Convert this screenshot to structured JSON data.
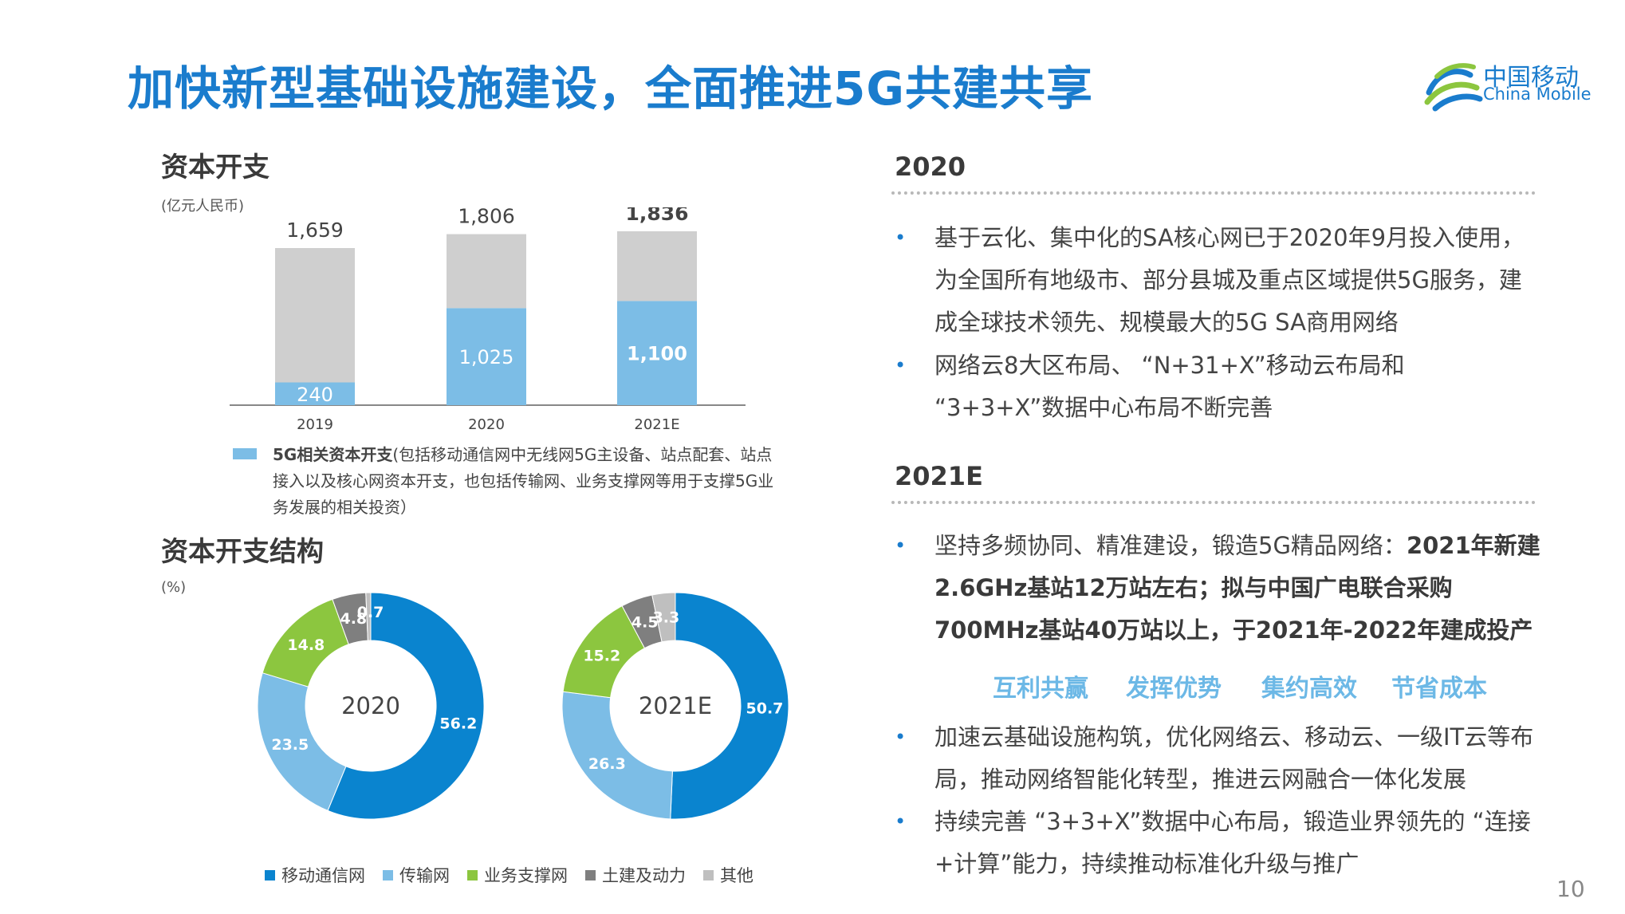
{
  "title": "加快新型基础设施建设，全面推进5G共建共享",
  "logo": {
    "cn": "中国移动",
    "en": "China Mobile"
  },
  "capex": {
    "heading": "资本开支",
    "unit": "(亿元人民币)",
    "legend_bold": "5G相关资本开支",
    "legend_rest": "(包括移动通信网中无线网5G主设备、站点配套、站点接入以及核心网资本开支，也包括传输网、业务支撑网等用于支撑5G业务发展的相关投资）"
  },
  "structure": {
    "heading": "资本开支结构",
    "unit": "(%)"
  },
  "right": {
    "h2020": "2020",
    "bullets2020": [
      "基于云化、集中化的SA核心网已于2020年9月投入使用，为全国所有地级市、部分县城及重点区域提供5G服务，建成全球技术领先、规模最大的5G SA商用网络",
      "网络云8大区布局、 “N+31+X”移动云布局和 “3+3+X”数据中心布局不断完善"
    ],
    "h2021": "2021E",
    "b2021_1_plain": "坚持多频协同、精准建设，锻造5G精品网络：",
    "b2021_1_bold": "2021年新建2.6GHz基站12万站左右；拟与中国广电联合采购700MHz基站40万站以上，于2021年-2022年建成投产",
    "keywords": [
      "互利共赢",
      "发挥优势",
      "集约高效",
      "节省成本"
    ],
    "bullets2021_rest": [
      "加速云基础设施构筑，优化网络云、移动云、一级IT云等布局，推动网络智能化转型，推进云网融合一体化发展",
      "持续完善 “3+3+X”数据中心布局，锻造业界领先的 “连接+计算”能力，持续推动标准化升级与推广"
    ]
  },
  "page_number": "10",
  "chart_data": [
    {
      "type": "bar",
      "categories": [
        "2019",
        "2020",
        "2021E"
      ],
      "series": [
        {
          "name": "5G相关资本开支",
          "values": [
            240,
            1025,
            1100
          ],
          "labels": [
            "240",
            "1,025",
            "1,100"
          ],
          "color": "#7cbde6"
        },
        {
          "values": [
            1419,
            781,
            736
          ],
          "color": "#cfcfcf"
        }
      ],
      "totals": [
        1659,
        1806,
        1836
      ],
      "total_labels": [
        "1,659",
        "1,806",
        "1,836"
      ],
      "ylim": [
        0,
        2000
      ],
      "grid": false,
      "legend": "bottom"
    },
    {
      "type": "pie",
      "center_label": "2020",
      "categories": [
        "移动通信网",
        "传输网",
        "业务支撑网",
        "土建及动力",
        "其他"
      ],
      "values": [
        56.2,
        23.5,
        14.8,
        4.8,
        0.7
      ],
      "labels": [
        "56.2",
        "23.5",
        "14.8",
        "4.8",
        "0.7"
      ],
      "colors": [
        "#0a84cf",
        "#7cbde6",
        "#8cc63f",
        "#7f7f7f",
        "#bfbfbf"
      ]
    },
    {
      "type": "pie",
      "center_label": "2021E",
      "categories": [
        "移动通信网",
        "传输网",
        "业务支撑网",
        "土建及动力",
        "其他"
      ],
      "values": [
        50.7,
        26.3,
        15.2,
        4.5,
        3.3
      ],
      "labels": [
        "50.7",
        "26.3",
        "15.2",
        "4.5",
        "3.3"
      ],
      "colors": [
        "#0a84cf",
        "#7cbde6",
        "#8cc63f",
        "#7f7f7f",
        "#bfbfbf"
      ]
    }
  ]
}
